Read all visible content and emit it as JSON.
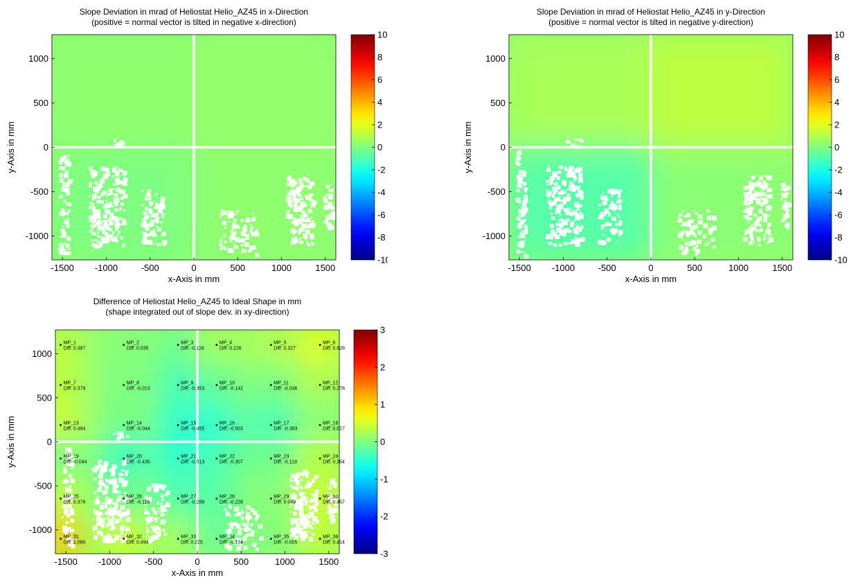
{
  "chart_data": [
    {
      "type": "heatmap",
      "title": "Slope Deviation in mrad of Heliostat Helio_AZ45 in x-Direction",
      "subtitle": "(positive = normal vector is tilted in negative x-direction)",
      "xlabel": "x-Axis in mm",
      "ylabel": "y-Axis in mm",
      "xlim": [
        -1620,
        1620
      ],
      "ylim": [
        -1270,
        1270
      ],
      "x_ticks": [
        -1500,
        -1000,
        -500,
        0,
        500,
        1000,
        1500
      ],
      "y_ticks": [
        -1000,
        -500,
        0,
        500,
        1000
      ],
      "colorbar": {
        "range": [
          -10,
          10
        ],
        "ticks": [
          10,
          8,
          6,
          4,
          2,
          0,
          -2,
          -4,
          -6,
          -8,
          -10
        ],
        "colormap": "jet"
      },
      "regions": [
        {
          "facet": "top-left",
          "approx_value": 0.3
        },
        {
          "facet": "top-right",
          "approx_value": 0.4
        },
        {
          "facet": "bottom-left",
          "approx_value": 0.0
        },
        {
          "facet": "bottom-right",
          "approx_value": 0.3
        }
      ]
    },
    {
      "type": "heatmap",
      "title": "Slope Deviation in mrad of Heliostat Helio_AZ45 in y-Direction",
      "subtitle": "(positive = normal vector is tilted in negative y-direction)",
      "xlabel": "x-Axis in mm",
      "ylabel": "y-Axis in mm",
      "xlim": [
        -1620,
        1620
      ],
      "ylim": [
        -1270,
        1270
      ],
      "x_ticks": [
        -1500,
        -1000,
        -500,
        0,
        500,
        1000,
        1500
      ],
      "y_ticks": [
        -1000,
        -500,
        0,
        500,
        1000
      ],
      "colorbar": {
        "range": [
          -10,
          10
        ],
        "ticks": [
          10,
          8,
          6,
          4,
          2,
          0,
          -2,
          -4,
          -6,
          -8,
          -10
        ],
        "colormap": "jet"
      },
      "regions": [
        {
          "facet": "top-left",
          "approx_value": 0.8
        },
        {
          "facet": "top-right",
          "approx_value": 1.2
        },
        {
          "facet": "bottom-left",
          "approx_value": -0.8
        },
        {
          "facet": "bottom-right",
          "approx_value": 0.2
        }
      ]
    },
    {
      "type": "heatmap",
      "title": "Difference of Heliostat Helio_AZ45 to Ideal Shape in mm",
      "subtitle": "(shape integrated out of slope dev. in xy-direction)",
      "xlabel": "x-Axis in mm",
      "ylabel": "y-Axis in mm",
      "xlim": [
        -1620,
        1620
      ],
      "ylim": [
        -1270,
        1270
      ],
      "x_ticks": [
        -1500,
        -1000,
        -500,
        0,
        500,
        1000,
        1500
      ],
      "y_ticks": [
        -1000,
        -500,
        0,
        500,
        1000
      ],
      "colorbar": {
        "range": [
          -3,
          3
        ],
        "ticks": [
          3,
          2,
          1,
          0,
          -1,
          -2,
          -3
        ],
        "colormap": "jet"
      },
      "measurement_points": [
        {
          "name": "MP_1",
          "x": -1560,
          "y": 1100,
          "diff": "Diff: 0.387"
        },
        {
          "name": "MP_2",
          "x": -840,
          "y": 1100,
          "diff": "Diff: 0.035"
        },
        {
          "name": "MP_3",
          "x": -220,
          "y": 1100,
          "diff": "Diff: -0.116"
        },
        {
          "name": "MP_4",
          "x": 220,
          "y": 1100,
          "diff": "Diff: 0.226"
        },
        {
          "name": "MP_5",
          "x": 840,
          "y": 1100,
          "diff": "Diff: 0.327"
        },
        {
          "name": "MP_6",
          "x": 1400,
          "y": 1100,
          "diff": "Diff: 0.628"
        },
        {
          "name": "MP_7",
          "x": -1560,
          "y": 645,
          "diff": "Diff: 0.379"
        },
        {
          "name": "MP_8",
          "x": -840,
          "y": 645,
          "diff": "Diff: -0.013"
        },
        {
          "name": "MP_9",
          "x": -220,
          "y": 645,
          "diff": "Diff: -0.353"
        },
        {
          "name": "MP_10",
          "x": 220,
          "y": 645,
          "diff": "Diff: -0.142"
        },
        {
          "name": "MP_11",
          "x": 840,
          "y": 645,
          "diff": "Diff: -0.036"
        },
        {
          "name": "MP_12",
          "x": 1400,
          "y": 645,
          "diff": "Diff: 0.278"
        },
        {
          "name": "MP_13",
          "x": -1560,
          "y": 190,
          "diff": "Diff: 0.484"
        },
        {
          "name": "MP_14",
          "x": -840,
          "y": 190,
          "diff": "Diff: -0.044"
        },
        {
          "name": "MP_15",
          "x": -220,
          "y": 190,
          "diff": "Diff: -0.455"
        },
        {
          "name": "MP_16",
          "x": 220,
          "y": 190,
          "diff": "Diff: -0.503"
        },
        {
          "name": "MP_17",
          "x": 840,
          "y": 190,
          "diff": "Diff: -0.383"
        },
        {
          "name": "MP_18",
          "x": 1400,
          "y": 190,
          "diff": "Diff: 0.017"
        },
        {
          "name": "MP_19",
          "x": -1560,
          "y": -190,
          "diff": "Diff: -0.044"
        },
        {
          "name": "MP_20",
          "x": -840,
          "y": -190,
          "diff": "Diff: -0.435"
        },
        {
          "name": "MP_21",
          "x": -220,
          "y": -190,
          "diff": "Diff: -0.513"
        },
        {
          "name": "MP_22",
          "x": 220,
          "y": -190,
          "diff": "Diff: -0.307"
        },
        {
          "name": "MP_23",
          "x": 840,
          "y": -190,
          "diff": "Diff: -0.119"
        },
        {
          "name": "MP_24",
          "x": 1400,
          "y": -190,
          "diff": "Diff: 0.354"
        },
        {
          "name": "MP_25",
          "x": -1560,
          "y": -645,
          "diff": "Diff: 0.376"
        },
        {
          "name": "MP_26",
          "x": -840,
          "y": -645,
          "diff": "Diff: -0.116"
        },
        {
          "name": "MP_27",
          "x": -220,
          "y": -645,
          "diff": "Diff: -0.289"
        },
        {
          "name": "MP_28",
          "x": 220,
          "y": -645,
          "diff": "Diff: -0.228"
        },
        {
          "name": "MP_29",
          "x": 840,
          "y": -645,
          "diff": "Diff: 0.049"
        },
        {
          "name": "MP_30",
          "x": 1400,
          "y": -645,
          "diff": "Diff: 0.457"
        },
        {
          "name": "MP_31",
          "x": -1560,
          "y": -1100,
          "diff": "Diff: 1.080"
        },
        {
          "name": "MP_32",
          "x": -840,
          "y": -1100,
          "diff": "Diff: 0.494"
        },
        {
          "name": "MP_33",
          "x": -220,
          "y": -1100,
          "diff": "Diff: 0.225"
        },
        {
          "name": "MP_34",
          "x": 220,
          "y": -1100,
          "diff": "Diff: -0.134"
        },
        {
          "name": "MP_35",
          "x": 840,
          "y": -1100,
          "diff": "Diff: -0.005"
        },
        {
          "name": "MP_36",
          "x": 1400,
          "y": -1100,
          "diff": "Diff: 0.414"
        }
      ]
    }
  ]
}
